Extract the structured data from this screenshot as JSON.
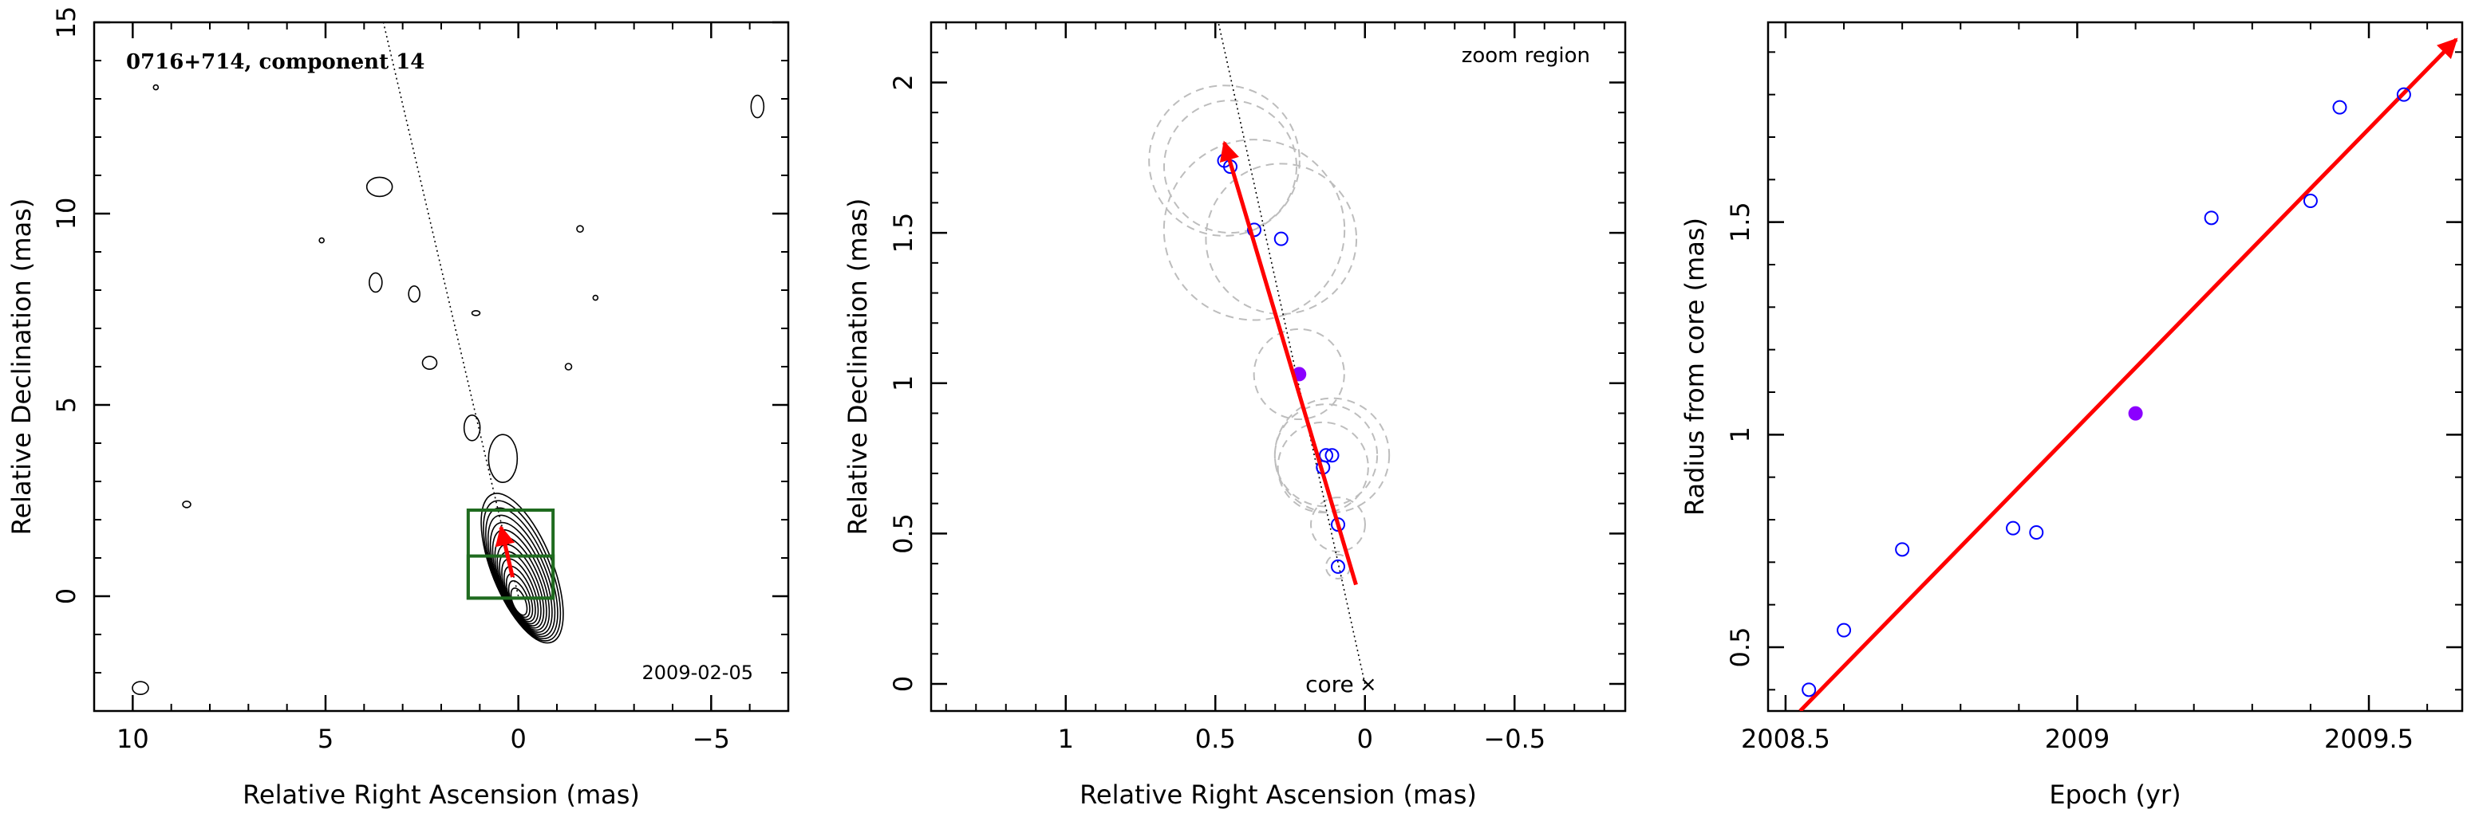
{
  "chart_data": [
    {
      "type": "contour",
      "title": "0716+714, component 14",
      "date_label": "2009-02-05",
      "xlabel": "Relative Right Ascension (mas)",
      "ylabel": "Relative Declination (mas)",
      "xlim": [
        11,
        -7
      ],
      "ylim": [
        -3,
        15
      ],
      "x_ticks": [
        10,
        5,
        0,
        -5
      ],
      "y_ticks": [
        0,
        5,
        10,
        15
      ],
      "jet_direction_line": {
        "from": [
          0,
          0
        ],
        "to": [
          3.5,
          15
        ]
      },
      "zoom_boxes": [
        {
          "x": [
            -0.9,
            1.3
          ],
          "y": [
            -0.05,
            2.25
          ]
        },
        {
          "x": [
            -0.9,
            1.3
          ],
          "y": [
            -0.05,
            1.05
          ]
        }
      ],
      "motion_arrow": {
        "from": [
          0.15,
          0.5
        ],
        "to": [
          0.45,
          1.8
        ]
      },
      "colors": {
        "contours": "#000000",
        "zoom_boxes": "#1f6b1f",
        "arrow": "#ff0000"
      }
    },
    {
      "type": "scatter",
      "annotation": "zoom region",
      "core_label": "core",
      "xlabel": "Relative Right Ascension (mas)",
      "ylabel": "Relative Declination (mas)",
      "xlim": [
        1.45,
        -0.87
      ],
      "ylim": [
        -0.09,
        2.2
      ],
      "x_ticks": [
        1,
        0.5,
        0,
        -0.5
      ],
      "x_tick_labels": [
        "1",
        "0.5",
        "0",
        "−0.5"
      ],
      "y_ticks": [
        0,
        0.5,
        1,
        1.5,
        2
      ],
      "y_tick_labels": [
        "0",
        "0.5",
        "1",
        "1.5",
        "2"
      ],
      "points": [
        {
          "x": 0.09,
          "y": 0.39,
          "r": 0.04
        },
        {
          "x": 0.09,
          "y": 0.53,
          "r": 0.09
        },
        {
          "x": 0.14,
          "y": 0.72,
          "r": 0.15
        },
        {
          "x": 0.13,
          "y": 0.76,
          "r": 0.17
        },
        {
          "x": 0.11,
          "y": 0.76,
          "r": 0.19
        },
        {
          "x": 0.22,
          "y": 1.03,
          "r": 0.15,
          "highlight": true
        },
        {
          "x": 0.28,
          "y": 1.48,
          "r": 0.25
        },
        {
          "x": 0.37,
          "y": 1.51,
          "r": 0.3
        },
        {
          "x": 0.45,
          "y": 1.72,
          "r": 0.22
        },
        {
          "x": 0.47,
          "y": 1.74,
          "r": 0.25
        }
      ],
      "jet_direction_line": {
        "from": [
          0,
          0
        ],
        "to": [
          0.49,
          2.2
        ]
      },
      "motion_arrow": {
        "from": [
          0.03,
          0.33
        ],
        "to": [
          0.47,
          1.8
        ]
      },
      "colors": {
        "points": "#0000ff",
        "highlight": "#8b00ff",
        "circles": "#bdbdbd",
        "arrow": "#ff0000"
      }
    },
    {
      "type": "scatter",
      "xlabel": "Epoch (yr)",
      "ylabel": "Radius from core (mas)",
      "xlim": [
        2008.47,
        2009.66
      ],
      "ylim": [
        0.35,
        1.97
      ],
      "x_ticks": [
        2008.5,
        2009,
        2009.5
      ],
      "x_tick_labels": [
        "2008.5",
        "2009",
        "2009.5"
      ],
      "y_ticks": [
        0.5,
        1,
        1.5
      ],
      "y_tick_labels": [
        "0.5",
        "1",
        "1.5"
      ],
      "points": [
        {
          "x": 2008.54,
          "y": 0.4
        },
        {
          "x": 2008.6,
          "y": 0.54
        },
        {
          "x": 2008.7,
          "y": 0.73
        },
        {
          "x": 2008.89,
          "y": 0.78
        },
        {
          "x": 2008.93,
          "y": 0.77
        },
        {
          "x": 2009.1,
          "y": 1.05,
          "highlight": true
        },
        {
          "x": 2009.23,
          "y": 1.51
        },
        {
          "x": 2009.4,
          "y": 1.55
        },
        {
          "x": 2009.45,
          "y": 1.77
        },
        {
          "x": 2009.56,
          "y": 1.8
        }
      ],
      "fit_arrow": {
        "from": [
          2008.525,
          0.35
        ],
        "to": [
          2009.65,
          1.93
        ]
      },
      "colors": {
        "points": "#0000ff",
        "highlight": "#8b00ff",
        "arrow": "#ff0000"
      }
    }
  ]
}
